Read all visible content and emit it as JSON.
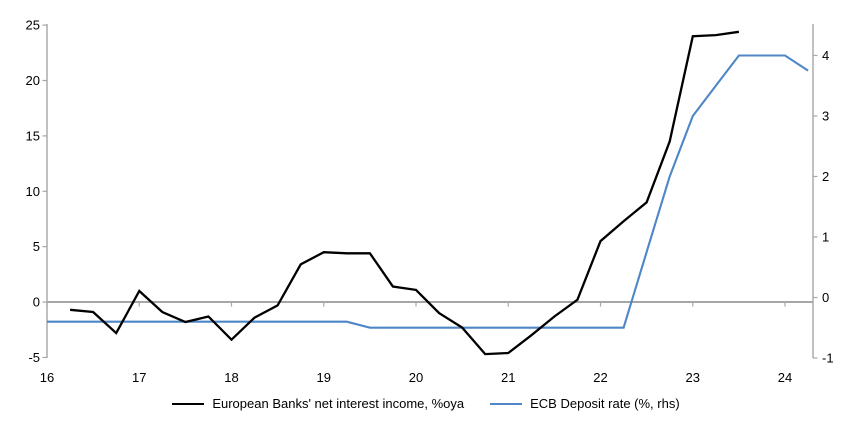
{
  "chart_data": {
    "type": "line",
    "title": "",
    "grid": false,
    "legend_position": "bottom",
    "colors": {
      "axis": "#a6a6a6",
      "zero_line": "#a6a6a6",
      "text": "#000000",
      "nii_line": "#000000",
      "ecb_line": "#4e86c6"
    },
    "x_axis": {
      "tick_labels": [
        "16",
        "17",
        "18",
        "19",
        "20",
        "21",
        "22",
        "23",
        "24"
      ],
      "tick_values": [
        16,
        17,
        18,
        19,
        20,
        21,
        22,
        23,
        24
      ],
      "min": 16,
      "max": 24.3
    },
    "left_axis": {
      "tick_labels": [
        "25",
        "20",
        "15",
        "10",
        "5",
        "0",
        "-5"
      ],
      "tick_values": [
        25,
        20,
        15,
        10,
        5,
        0,
        -5
      ],
      "min": -5.05,
      "max": 25.1
    },
    "right_axis": {
      "tick_labels": [
        "4",
        "3",
        "2",
        "1",
        "0",
        "-1"
      ],
      "tick_values": [
        4,
        3,
        2,
        1,
        0,
        -1
      ],
      "min": -1.0,
      "max": 4.52
    },
    "series": [
      {
        "name": "European Banks' net interest income, %oya",
        "axis": "left",
        "color": "#000000",
        "x": [
          16.25,
          16.5,
          16.75,
          17.0,
          17.25,
          17.5,
          17.75,
          18.0,
          18.25,
          18.5,
          18.75,
          19.0,
          19.25,
          19.5,
          19.75,
          20.0,
          20.25,
          20.5,
          20.75,
          21.0,
          21.25,
          21.5,
          21.75,
          22.0,
          22.25,
          22.5,
          22.75,
          23.0,
          23.25,
          23.5
        ],
        "values": [
          -0.7,
          -0.9,
          -2.8,
          1.0,
          -0.9,
          -1.8,
          -1.3,
          -3.4,
          -1.4,
          -0.3,
          3.4,
          4.5,
          4.4,
          4.4,
          1.4,
          1.1,
          -1.0,
          -2.3,
          -4.7,
          -4.6,
          -3.0,
          -1.3,
          0.2,
          5.5,
          7.3,
          9.0,
          14.5,
          24.0,
          24.1,
          24.4
        ]
      },
      {
        "name": "ECB Deposit rate (%, rhs)",
        "axis": "right",
        "color": "#4e86c6",
        "x": [
          16.0,
          16.25,
          16.5,
          16.75,
          17.0,
          17.25,
          17.5,
          17.75,
          18.0,
          18.25,
          18.5,
          18.75,
          19.0,
          19.25,
          19.5,
          19.75,
          20.0,
          20.25,
          20.5,
          20.75,
          21.0,
          21.25,
          21.5,
          21.75,
          22.0,
          22.25,
          22.5,
          22.75,
          23.0,
          23.25,
          23.5,
          23.75,
          24.0,
          24.25
        ],
        "values": [
          -0.4,
          -0.4,
          -0.4,
          -0.4,
          -0.4,
          -0.4,
          -0.4,
          -0.4,
          -0.4,
          -0.4,
          -0.4,
          -0.4,
          -0.4,
          -0.4,
          -0.5,
          -0.5,
          -0.5,
          -0.5,
          -0.5,
          -0.5,
          -0.5,
          -0.5,
          -0.5,
          -0.5,
          -0.5,
          -0.5,
          0.75,
          2.0,
          3.0,
          3.5,
          4.0,
          4.0,
          4.0,
          3.75
        ]
      }
    ]
  }
}
